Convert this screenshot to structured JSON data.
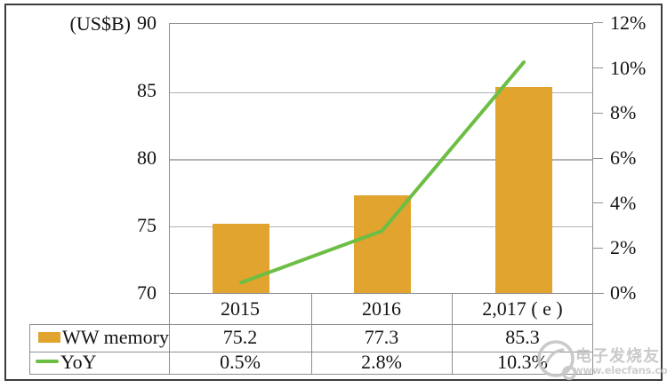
{
  "chart_data": {
    "type": "bar",
    "subtype": "bar-and-line-combo",
    "title": "",
    "categories": [
      "2015",
      "2016",
      "2,017 ( e )"
    ],
    "series": [
      {
        "name": "WW memory",
        "type": "bar",
        "axis": "left",
        "unit": "US$B",
        "values": [
          75.2,
          77.3,
          85.3
        ]
      },
      {
        "name": "YoY",
        "type": "line",
        "axis": "right",
        "unit": "%",
        "values": [
          0.5,
          2.8,
          10.3
        ]
      }
    ],
    "left_axis": {
      "title": "(US$B)",
      "min": 70,
      "max": 90,
      "tick_step": 5,
      "ticks": [
        "90",
        "85",
        "80",
        "75",
        "70"
      ]
    },
    "right_axis": {
      "title": "",
      "min": 0,
      "max": 12,
      "tick_step": 2,
      "ticks": [
        "12%",
        "10%",
        "8%",
        "6%",
        "4%",
        "2%",
        "0%"
      ]
    },
    "grid": "horizontal gridlines at left-axis steps 75/80/85",
    "legend_position": "bottom table"
  },
  "table": {
    "years": [
      "2015",
      "2016",
      "2,017 ( e )"
    ],
    "rows": [
      {
        "label": "WW memory",
        "values": [
          "75.2",
          "77.3",
          "85.3"
        ]
      },
      {
        "label": "YoY",
        "values": [
          "0.5%",
          "2.8%",
          "10.3%"
        ]
      }
    ]
  },
  "watermark": {
    "brand": "电子发烧友",
    "url": "www.elecfans.com"
  },
  "colors": {
    "bar": "#e1a42f",
    "line": "#6cbe44",
    "grid": "#b3b3b3",
    "frame": "#8f8f8f",
    "outer_border": "#3d3d3d",
    "watermark": "#c6c6c6"
  }
}
